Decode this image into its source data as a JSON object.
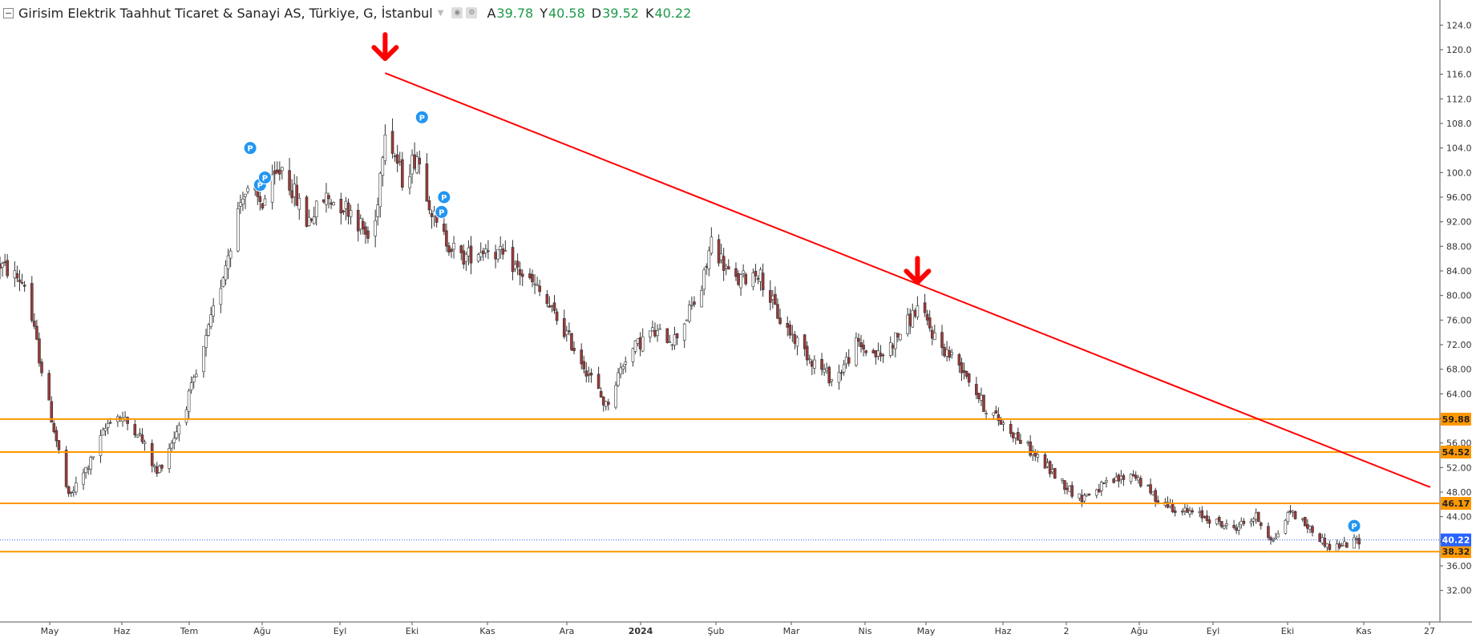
{
  "legend": {
    "title": "Girisim Elektrik Taahhut Ticaret & Sanayi AS, Türkiye, G, İstanbul",
    "open_label": "A",
    "open": "39.78",
    "high_label": "Y",
    "high": "40.58",
    "low_label": "D",
    "low": "39.52",
    "close_label": "K",
    "close": "40.22",
    "icons": [
      "collapse-icon",
      "chevron-down-icon",
      "eye-icon",
      "settings-icon"
    ]
  },
  "chart_data": {
    "type": "candlestick",
    "title": "Girisim Elektrik Taahhut Ticaret & Sanayi AS, Türkiye, G, İstanbul",
    "ylim": [
      30,
      126
    ],
    "y_ticks": [
      "124.00",
      "120.00",
      "116.00",
      "112.00",
      "108.00",
      "104.00",
      "100.00",
      "96.00",
      "92.00",
      "88.00",
      "84.00",
      "80.00",
      "76.00",
      "72.00",
      "68.00",
      "64.00",
      "60.00",
      "56.00",
      "52.00",
      "48.00",
      "44.00",
      "40.00",
      "36.00",
      "32.00"
    ],
    "x_ticks": [
      "May",
      "Haz",
      "Tem",
      "Ağu",
      "Eyl",
      "Eki",
      "Kas",
      "Ara",
      "2024",
      "Şub",
      "Mar",
      "Nis",
      "May",
      "Haz",
      "2",
      "Ağu",
      "Eyl",
      "Eki",
      "Kas",
      "27"
    ],
    "x_tick_bold": [
      "2024"
    ],
    "x_range": [
      "2023-04-25",
      "2024-11-30"
    ],
    "price_anchors": [
      {
        "date": "2023-04-25",
        "value": 85
      },
      {
        "date": "2023-05-05",
        "value": 82
      },
      {
        "date": "2023-05-15",
        "value": 62
      },
      {
        "date": "2023-05-23",
        "value": 47
      },
      {
        "date": "2023-06-01",
        "value": 53
      },
      {
        "date": "2023-06-10",
        "value": 61
      },
      {
        "date": "2023-06-20",
        "value": 58
      },
      {
        "date": "2023-06-28",
        "value": 51
      },
      {
        "date": "2023-07-06",
        "value": 58
      },
      {
        "date": "2023-07-15",
        "value": 68
      },
      {
        "date": "2023-07-24",
        "value": 82
      },
      {
        "date": "2023-08-02",
        "value": 97
      },
      {
        "date": "2023-08-10",
        "value": 95
      },
      {
        "date": "2023-08-18",
        "value": 101
      },
      {
        "date": "2023-08-28",
        "value": 92
      },
      {
        "date": "2023-09-05",
        "value": 96
      },
      {
        "date": "2023-09-15",
        "value": 94
      },
      {
        "date": "2023-09-24",
        "value": 88
      },
      {
        "date": "2023-09-29",
        "value": 108
      },
      {
        "date": "2023-10-06",
        "value": 99
      },
      {
        "date": "2023-10-12",
        "value": 103
      },
      {
        "date": "2023-10-20",
        "value": 91
      },
      {
        "date": "2023-10-30",
        "value": 86
      },
      {
        "date": "2023-11-10",
        "value": 88
      },
      {
        "date": "2023-11-20",
        "value": 85
      },
      {
        "date": "2023-11-30",
        "value": 81
      },
      {
        "date": "2023-12-10",
        "value": 75
      },
      {
        "date": "2023-12-20",
        "value": 68
      },
      {
        "date": "2023-12-28",
        "value": 62
      },
      {
        "date": "2024-01-05",
        "value": 70
      },
      {
        "date": "2024-01-15",
        "value": 74
      },
      {
        "date": "2024-01-25",
        "value": 73
      },
      {
        "date": "2024-02-05",
        "value": 81
      },
      {
        "date": "2024-02-09",
        "value": 89
      },
      {
        "date": "2024-02-18",
        "value": 82
      },
      {
        "date": "2024-02-28",
        "value": 84
      },
      {
        "date": "2024-03-08",
        "value": 76
      },
      {
        "date": "2024-03-20",
        "value": 70
      },
      {
        "date": "2024-03-30",
        "value": 66
      },
      {
        "date": "2024-04-08",
        "value": 72
      },
      {
        "date": "2024-04-18",
        "value": 70
      },
      {
        "date": "2024-04-28",
        "value": 75
      },
      {
        "date": "2024-05-03",
        "value": 78
      },
      {
        "date": "2024-05-12",
        "value": 72
      },
      {
        "date": "2024-05-22",
        "value": 68
      },
      {
        "date": "2024-05-30",
        "value": 62
      },
      {
        "date": "2024-06-10",
        "value": 58
      },
      {
        "date": "2024-06-20",
        "value": 54
      },
      {
        "date": "2024-06-30",
        "value": 50
      },
      {
        "date": "2024-07-08",
        "value": 47
      },
      {
        "date": "2024-07-18",
        "value": 49
      },
      {
        "date": "2024-07-30",
        "value": 51
      },
      {
        "date": "2024-08-08",
        "value": 47
      },
      {
        "date": "2024-08-18",
        "value": 45
      },
      {
        "date": "2024-08-28",
        "value": 44
      },
      {
        "date": "2024-09-08",
        "value": 42
      },
      {
        "date": "2024-09-18",
        "value": 44
      },
      {
        "date": "2024-09-25",
        "value": 40
      },
      {
        "date": "2024-10-02",
        "value": 45
      },
      {
        "date": "2024-10-10",
        "value": 42
      },
      {
        "date": "2024-10-18",
        "value": 39
      },
      {
        "date": "2024-10-25",
        "value": 39.5
      },
      {
        "date": "2024-10-30",
        "value": 40.22
      }
    ],
    "horizontal_levels": [
      {
        "value": 59.88,
        "label": "59.88"
      },
      {
        "value": 54.52,
        "label": "54.52"
      },
      {
        "value": 46.17,
        "label": "46.17"
      },
      {
        "value": 38.32,
        "label": "38.32"
      }
    ],
    "current_price": {
      "value": 40.22,
      "label": "40.22"
    },
    "trendline": {
      "from": {
        "date": "2023-09-29",
        "value": 116.2
      },
      "to": {
        "date": "2024-11-28",
        "value": 48.8
      }
    },
    "peak_markers": [
      {
        "date": "2023-09-29",
        "value": 116.2
      },
      {
        "date": "2024-05-03",
        "value": 79.8
      }
    ],
    "event_markers": [
      {
        "date": "2023-08-05",
        "value": 104,
        "label": "P"
      },
      {
        "date": "2023-08-09",
        "value": 98,
        "label": "P"
      },
      {
        "date": "2023-08-11",
        "value": 99.2,
        "label": "P"
      },
      {
        "date": "2023-10-14",
        "value": 109,
        "label": "P"
      },
      {
        "date": "2023-10-23",
        "value": 96,
        "label": "P"
      },
      {
        "date": "2023-10-22",
        "value": 93.6,
        "label": "P"
      },
      {
        "date": "2024-10-28",
        "value": 42.5,
        "label": "P"
      }
    ],
    "colors": {
      "up_candle": "#ffffff",
      "down_candle": "#9b3a3a",
      "wick": "#333333",
      "level_line": "#ff9800",
      "trendline": "#ff0000",
      "marker": "#ff0000",
      "event_badge": "#2196f3",
      "current_price": "#2962ff"
    }
  }
}
